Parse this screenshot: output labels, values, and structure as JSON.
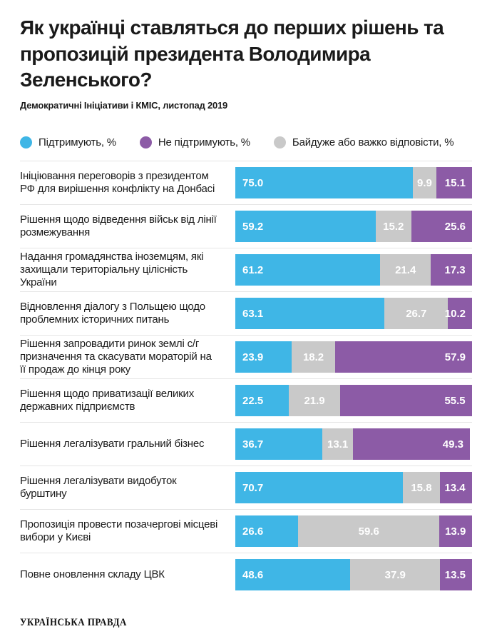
{
  "title": "Як українці ставляться до перших рішень та пропозицій президента Володимира Зеленського?",
  "subtitle": "Демократичні Ініціативи і КМІС, листопад 2019",
  "footer": {
    "logo": "Українська правда"
  },
  "colors": {
    "support": "#3FB6E6",
    "oppose": "#8C5BA6",
    "neutral": "#C9C9C9",
    "separator": "#E5E5E5",
    "text": "#1A1A1A",
    "bar_value_text": "#FFFFFF"
  },
  "chart_data": {
    "type": "bar",
    "orientation": "horizontal",
    "stacked": true,
    "value_format": "one_decimal_percent",
    "xlim": [
      0,
      100
    ],
    "grid": false,
    "legend_position": "top",
    "legend_order": [
      "support",
      "oppose",
      "neutral"
    ],
    "segment_order": [
      "support",
      "neutral",
      "oppose"
    ],
    "categories": [
      "Ініціювання переговорів з президентом РФ для вирішення конфлікту на Донбасі",
      "Рішення щодо відведення військ від лінії розмежування",
      "Надання громадянства іноземцям, які захищали територіальну цілісність України",
      "Відновлення діалогу з Польщею щодо проблемних історичних питань",
      "Рішення запровадити ринок землі с/г призначення та скасувати мораторій на її продаж до кінця року",
      "Рішення щодо приватизації великих державних підприємств",
      "Рішення легалізувати гральний бізнес",
      "Рішення легалізувати видобуток бурштину",
      "Пропозиція провести позачергові місцеві вибори у Києві",
      "Повне оновлення складу ЦВК"
    ],
    "series": [
      {
        "key": "support",
        "name": "Підтримують, %",
        "color": "#3FB6E6",
        "values": [
          75.0,
          59.2,
          61.2,
          63.1,
          23.9,
          22.5,
          36.7,
          70.7,
          26.6,
          48.6
        ]
      },
      {
        "key": "oppose",
        "name": "Не підтримують, %",
        "color": "#8C5BA6",
        "values": [
          15.1,
          25.6,
          17.3,
          10.2,
          57.9,
          55.5,
          49.3,
          13.4,
          13.9,
          13.5
        ]
      },
      {
        "key": "neutral",
        "name": "Байдуже або важко відповісти, %",
        "color": "#C9C9C9",
        "values": [
          9.9,
          15.2,
          21.4,
          26.7,
          18.2,
          21.9,
          13.1,
          15.8,
          59.6,
          37.9
        ]
      }
    ]
  }
}
